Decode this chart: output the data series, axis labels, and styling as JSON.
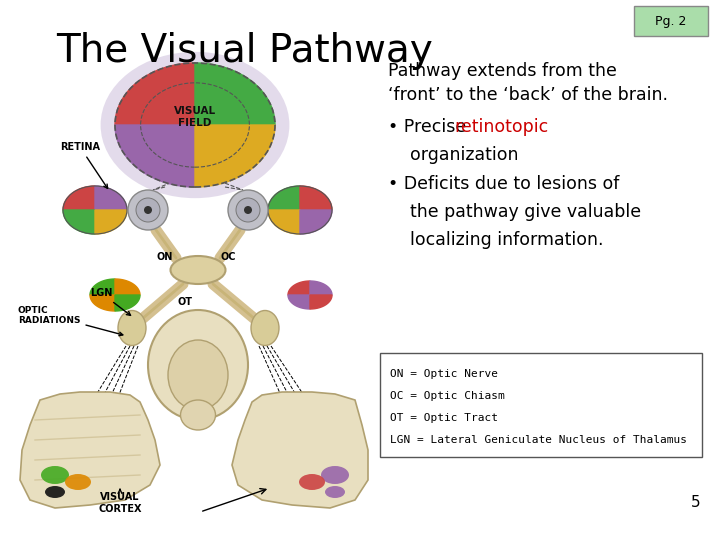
{
  "title": "The Visual Pathway",
  "pg_label": "Pg. 2",
  "pg_box_color": "#aaddaa",
  "pg_text_color": "#000000",
  "title_fontsize": 28,
  "title_color": "#000000",
  "background_color": "#ffffff",
  "intro_line1": "Pathway extends from the",
  "intro_line2": "‘front’ to the ‘back’ of the brain.",
  "bullet1_plain": "• Precise ",
  "bullet1_colored": "retinotopic",
  "bullet1_rest": "organization",
  "bullet1_color": "#cc0000",
  "bullet2_line1": "• Deficits due to lesions of",
  "bullet2_line2": "the pathway give valuable",
  "bullet2_line3": "localizing information.",
  "text_fontsize": 12.5,
  "abbrev_lines": [
    "ON = Optic Nerve",
    "OC = Optic Chiasm",
    "OT = Optic Tract",
    "LGN = Lateral Geniculate Nucleus of Thalamus"
  ],
  "abbrev_fontsize": 8,
  "page_number": "5",
  "page_num_fontsize": 11
}
